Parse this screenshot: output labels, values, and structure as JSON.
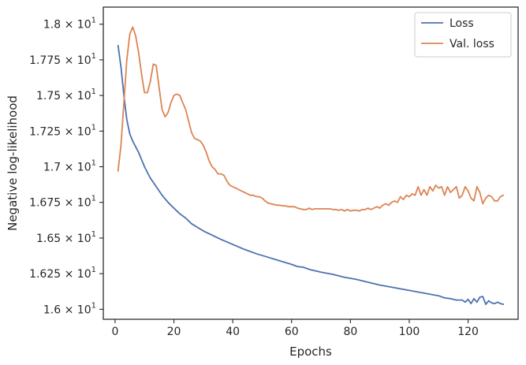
{
  "chart_data": {
    "type": "line",
    "xlabel": "Epochs",
    "ylabel": "Negative log-likelihood",
    "xlim": [
      -4,
      137
    ],
    "ylim": [
      15.93,
      18.12
    ],
    "x_ticks": [
      0,
      20,
      40,
      60,
      80,
      100,
      120
    ],
    "y_ticks": [
      {
        "value": 16.0,
        "mantissa": "1.6"
      },
      {
        "value": 16.25,
        "mantissa": "1.625"
      },
      {
        "value": 16.5,
        "mantissa": "1.65"
      },
      {
        "value": 16.75,
        "mantissa": "1.675"
      },
      {
        "value": 17.0,
        "mantissa": "1.7"
      },
      {
        "value": 17.25,
        "mantissa": "1.725"
      },
      {
        "value": 17.5,
        "mantissa": "1.75"
      },
      {
        "value": 17.75,
        "mantissa": "1.775"
      },
      {
        "value": 18.0,
        "mantissa": "1.8"
      }
    ],
    "y_tick_base": "10",
    "y_tick_exponent": "1",
    "grid": false,
    "legend_position": "upper right",
    "series": [
      {
        "name": "Loss",
        "color": "#4c72b0",
        "x": [
          1,
          2,
          3,
          4,
          5,
          6,
          8,
          10,
          12,
          14,
          16,
          18,
          20,
          22,
          24,
          26,
          28,
          30,
          33,
          36,
          40,
          44,
          48,
          52,
          56,
          60,
          62,
          64,
          66,
          70,
          74,
          78,
          82,
          86,
          90,
          94,
          98,
          102,
          106,
          110,
          112,
          114,
          116,
          118,
          119,
          120,
          121,
          122,
          123,
          124,
          125,
          126,
          127,
          128,
          129,
          130,
          131,
          132
        ],
        "y": [
          17.85,
          17.7,
          17.5,
          17.33,
          17.23,
          17.18,
          17.1,
          17.0,
          16.92,
          16.86,
          16.8,
          16.75,
          16.71,
          16.67,
          16.64,
          16.6,
          16.575,
          16.55,
          16.52,
          16.49,
          16.455,
          16.42,
          16.39,
          16.365,
          16.34,
          16.315,
          16.3,
          16.295,
          16.28,
          16.26,
          16.245,
          16.225,
          16.21,
          16.19,
          16.17,
          16.155,
          16.14,
          16.125,
          16.11,
          16.095,
          16.08,
          16.075,
          16.065,
          16.065,
          16.05,
          16.07,
          16.04,
          16.075,
          16.05,
          16.085,
          16.09,
          16.035,
          16.06,
          16.045,
          16.04,
          16.05,
          16.04,
          16.035
        ]
      },
      {
        "name": "Val. loss",
        "color": "#dd8452",
        "x": [
          1,
          2,
          3,
          4,
          5,
          6,
          7,
          8,
          9,
          10,
          11,
          12,
          13,
          14,
          15,
          16,
          17,
          18,
          19,
          20,
          21,
          22,
          23,
          24,
          25,
          26,
          27,
          28,
          29,
          30,
          31,
          32,
          33,
          34,
          35,
          36,
          37,
          38,
          39,
          40,
          41,
          42,
          43,
          44,
          45,
          46,
          47,
          48,
          49,
          50,
          51,
          52,
          53,
          54,
          55,
          56,
          57,
          58,
          59,
          60,
          61,
          62,
          63,
          64,
          65,
          66,
          67,
          68,
          69,
          70,
          71,
          72,
          73,
          74,
          75,
          76,
          77,
          78,
          79,
          80,
          81,
          82,
          83,
          84,
          85,
          86,
          87,
          88,
          89,
          90,
          91,
          92,
          93,
          94,
          95,
          96,
          97,
          98,
          99,
          100,
          101,
          102,
          103,
          104,
          105,
          106,
          107,
          108,
          109,
          110,
          111,
          112,
          113,
          114,
          115,
          116,
          117,
          118,
          119,
          120,
          121,
          122,
          123,
          124,
          125,
          126,
          127,
          128,
          129,
          130,
          131,
          132
        ],
        "y": [
          16.97,
          17.15,
          17.45,
          17.75,
          17.93,
          17.98,
          17.92,
          17.8,
          17.65,
          17.52,
          17.52,
          17.6,
          17.72,
          17.71,
          17.55,
          17.4,
          17.35,
          17.38,
          17.45,
          17.5,
          17.51,
          17.5,
          17.45,
          17.4,
          17.32,
          17.24,
          17.2,
          17.19,
          17.18,
          17.15,
          17.1,
          17.04,
          17.0,
          16.98,
          16.95,
          16.95,
          16.94,
          16.9,
          16.87,
          16.86,
          16.85,
          16.84,
          16.83,
          16.82,
          16.81,
          16.8,
          16.8,
          16.79,
          16.79,
          16.78,
          16.76,
          16.745,
          16.74,
          16.735,
          16.73,
          16.73,
          16.725,
          16.725,
          16.72,
          16.72,
          16.72,
          16.71,
          16.705,
          16.7,
          16.7,
          16.71,
          16.7,
          16.705,
          16.705,
          16.705,
          16.705,
          16.705,
          16.705,
          16.7,
          16.7,
          16.695,
          16.7,
          16.69,
          16.7,
          16.69,
          16.695,
          16.695,
          16.69,
          16.7,
          16.7,
          16.71,
          16.7,
          16.71,
          16.72,
          16.71,
          16.73,
          16.74,
          16.73,
          16.75,
          16.76,
          16.75,
          16.79,
          16.77,
          16.8,
          16.79,
          16.81,
          16.8,
          16.86,
          16.8,
          16.84,
          16.8,
          16.86,
          16.83,
          16.87,
          16.85,
          16.86,
          16.8,
          16.86,
          16.82,
          16.84,
          16.86,
          16.78,
          16.8,
          16.86,
          16.83,
          16.78,
          16.76,
          16.86,
          16.82,
          16.74,
          16.78,
          16.8,
          16.79,
          16.76,
          16.76,
          16.79,
          16.8
        ]
      }
    ]
  }
}
